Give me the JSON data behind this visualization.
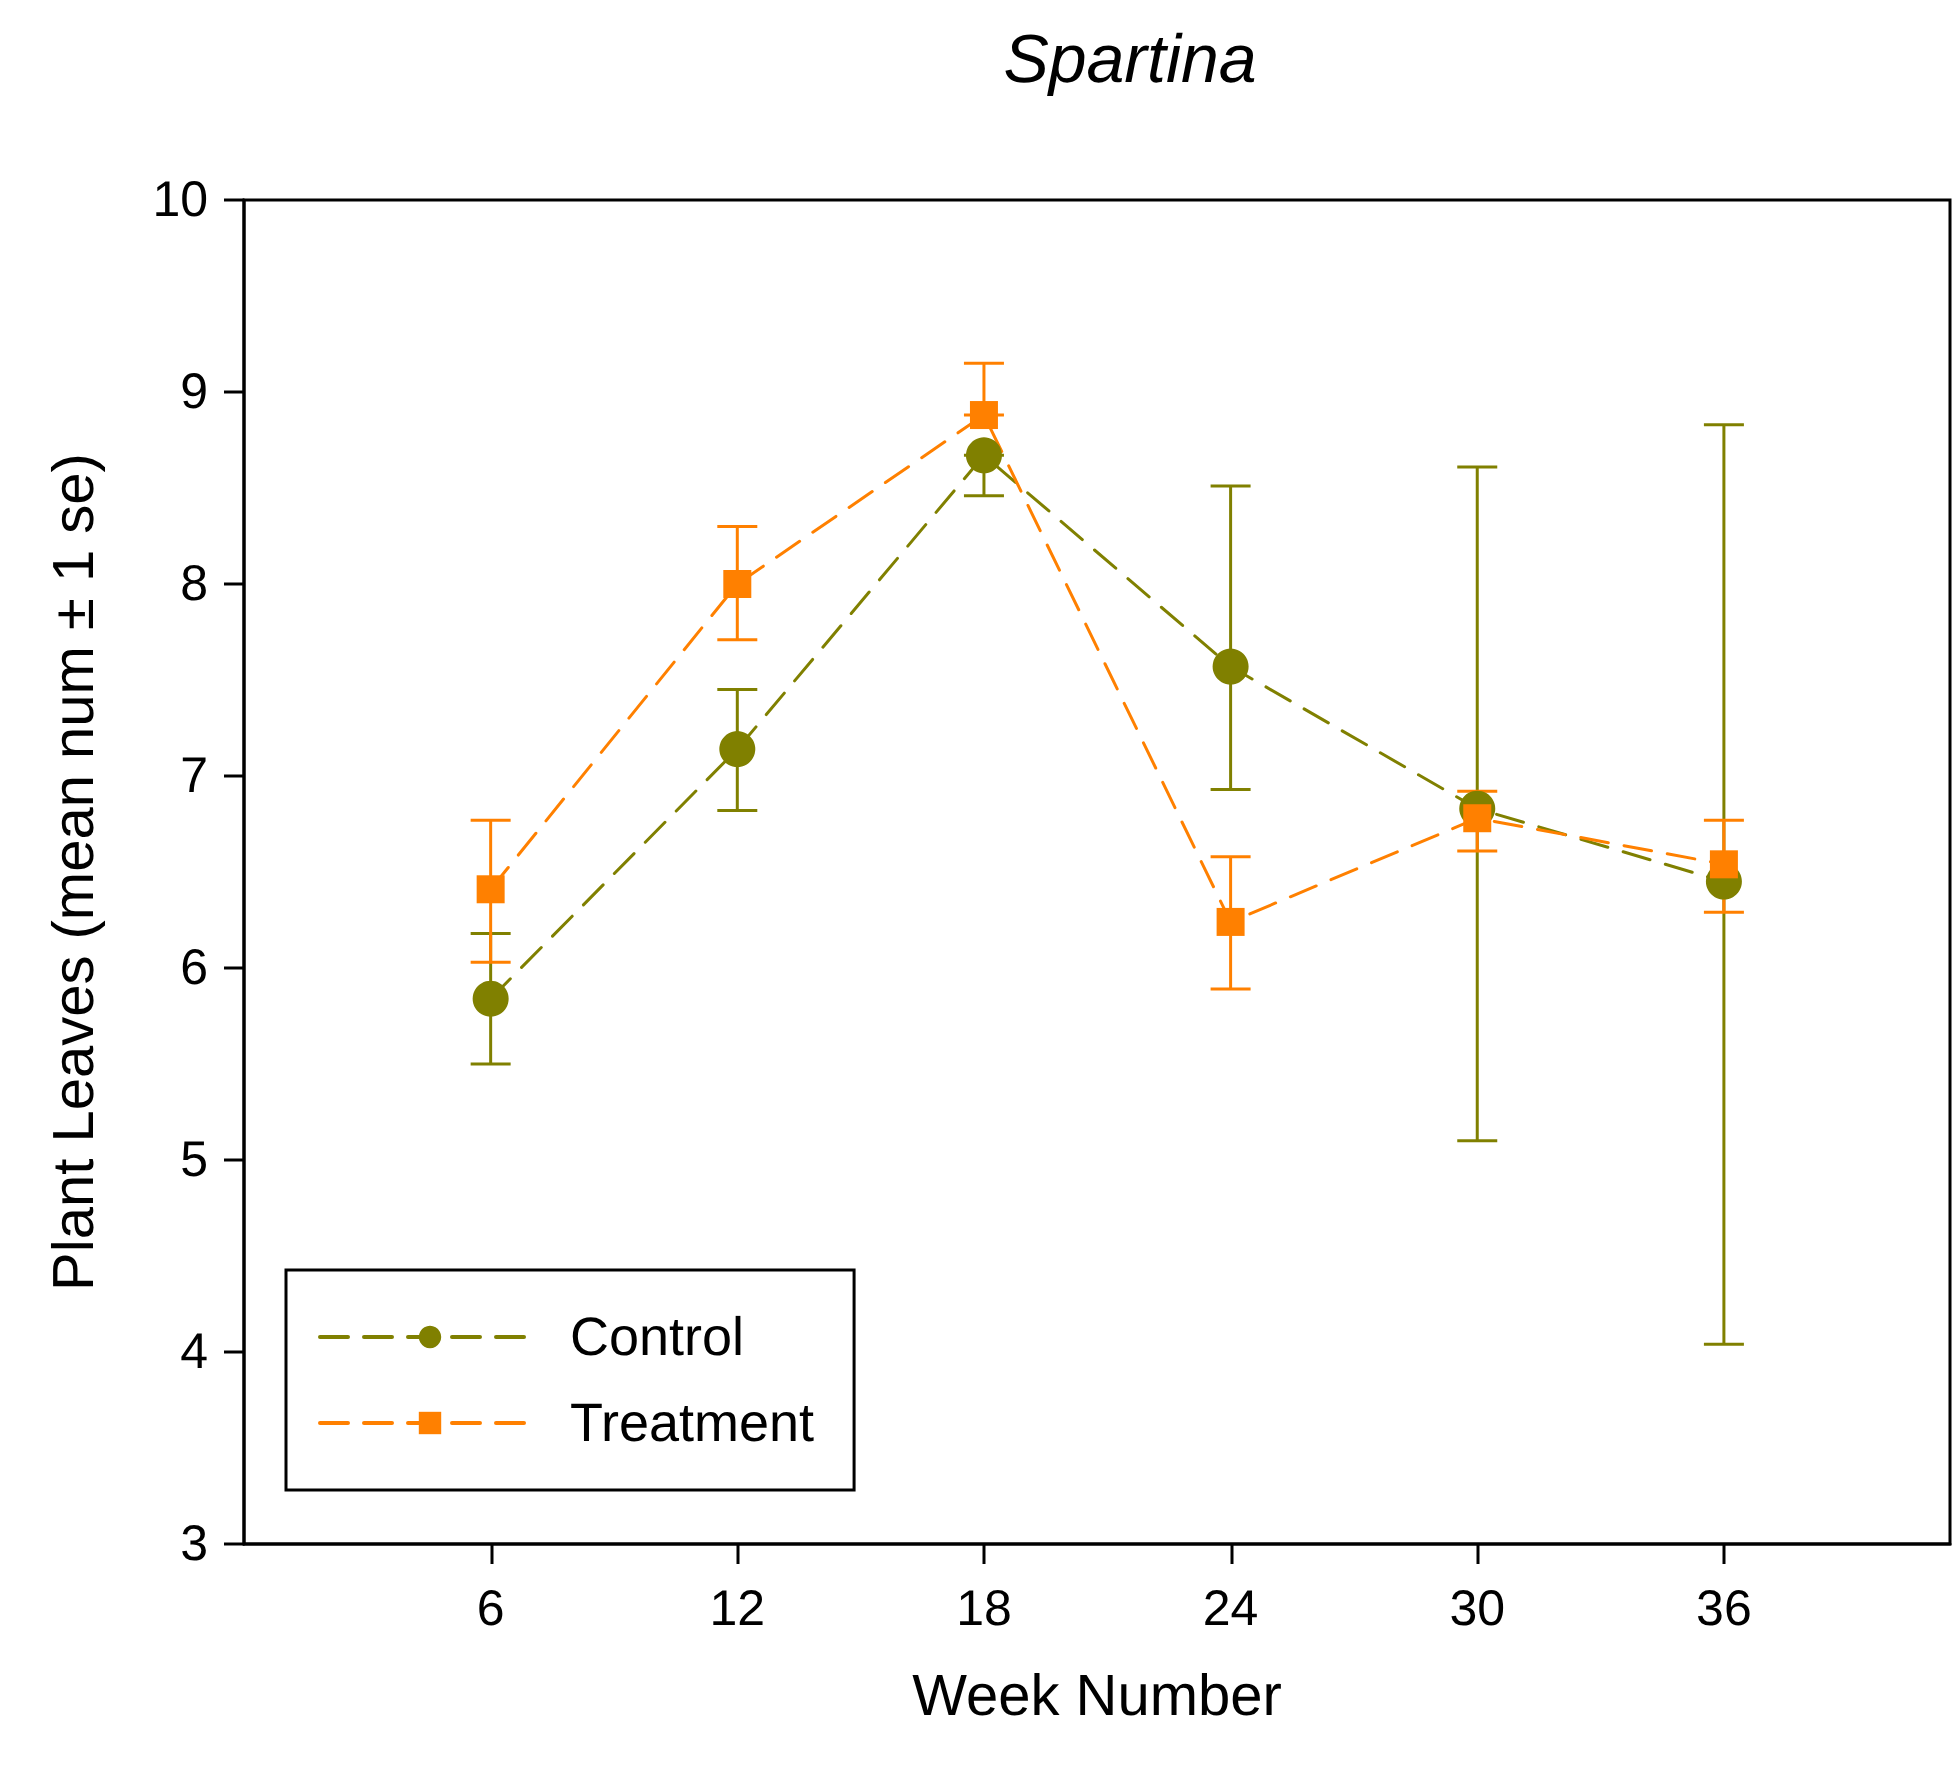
{
  "chart_data": {
    "type": "line",
    "title": "Spartina",
    "xlabel": "Week Number",
    "ylabel": "Plant Leaves (mean num ± 1 se)",
    "x": [
      6,
      12,
      18,
      24,
      30,
      36
    ],
    "series": [
      {
        "name": "Control",
        "color": "#808000",
        "marker": "circle",
        "values": [
          5.84,
          7.14,
          8.67,
          7.57,
          6.83,
          6.45
        ],
        "errors": [
          [
            5.5,
            6.18
          ],
          [
            6.82,
            7.45
          ],
          [
            8.46,
            8.67
          ],
          [
            6.93,
            8.51
          ],
          [
            5.1,
            8.61
          ],
          [
            4.04,
            8.83
          ]
        ]
      },
      {
        "name": "Treatment",
        "color": "#ff8000",
        "marker": "square",
        "values": [
          6.41,
          8.0,
          8.88,
          6.24,
          6.78,
          6.54
        ],
        "errors": [
          [
            6.03,
            6.77
          ],
          [
            7.71,
            8.3
          ],
          [
            8.88,
            9.15
          ],
          [
            5.89,
            6.58
          ],
          [
            6.61,
            6.92
          ],
          [
            6.29,
            6.77
          ]
        ]
      }
    ],
    "xlim": [
      0,
      41.5
    ],
    "xticks": [
      6,
      12,
      18,
      24,
      30,
      36
    ],
    "ylim": [
      3,
      10
    ],
    "yticks": [
      3,
      4,
      5,
      6,
      7,
      8,
      9,
      10
    ],
    "line_style": "dashed",
    "grid": false,
    "legend": "bottom left"
  }
}
